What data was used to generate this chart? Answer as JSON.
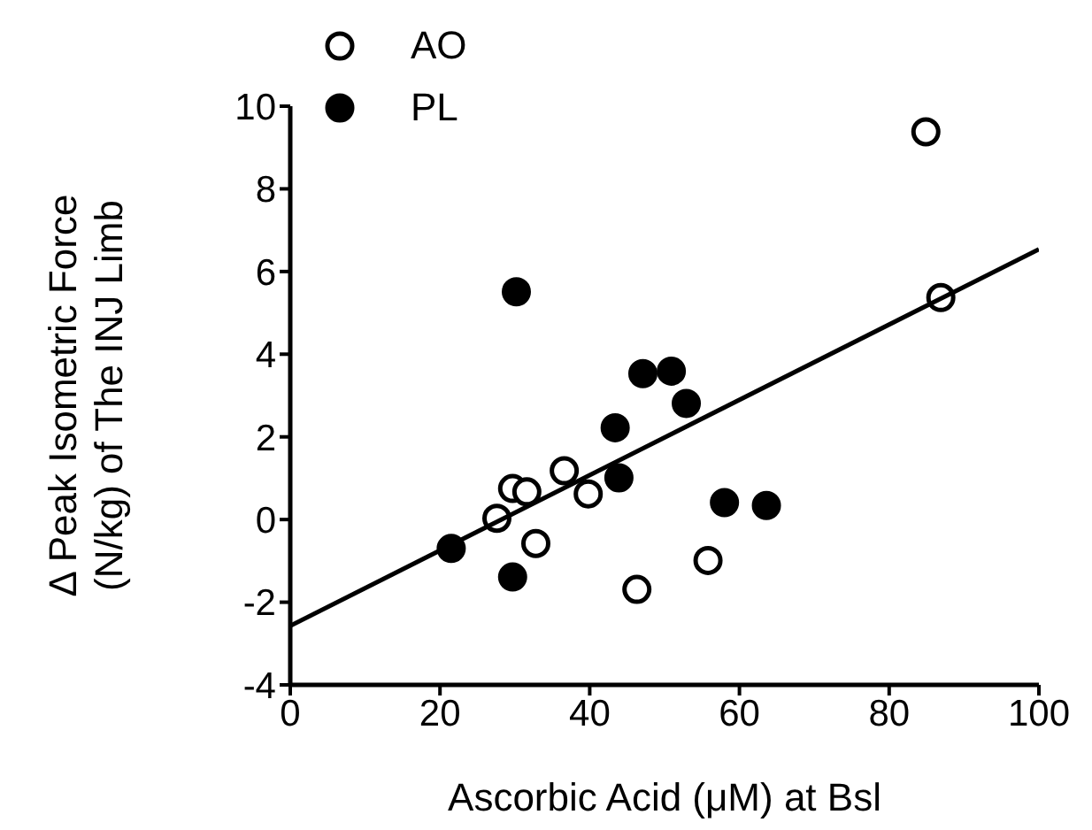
{
  "chart_data": {
    "type": "scatter",
    "xlabel": "Ascorbic Acid (μM) at Bsl",
    "ylabel": "Δ Peak Isometric Force\n(N/kg) of The INJ Limb",
    "xlim": [
      0,
      100
    ],
    "ylim": [
      -4,
      10
    ],
    "xticks": [
      0,
      20,
      40,
      60,
      80,
      100
    ],
    "yticks": [
      -4,
      -2,
      0,
      2,
      4,
      6,
      8,
      10
    ],
    "grid": false,
    "legend": "top left",
    "marker": "circle",
    "series": [
      {
        "name": "AO",
        "color": "#ffffff",
        "x": [
          84.9,
          86.9,
          27.6,
          29.7,
          31.6,
          36.6,
          39.8,
          32.8,
          46.3,
          55.8
        ],
        "values": [
          9.38,
          5.37,
          0.03,
          0.75,
          0.67,
          1.18,
          0.62,
          -0.58,
          -1.69,
          -0.99
        ]
      },
      {
        "name": "PL",
        "color": "#000000",
        "x": [
          30.2,
          21.5,
          29.7,
          43.4,
          43.9,
          47.1,
          50.9,
          52.9,
          58.0,
          63.6
        ],
        "values": [
          5.51,
          -0.7,
          -1.39,
          2.22,
          1.01,
          3.53,
          3.59,
          2.81,
          0.41,
          0.34
        ]
      },
      {
        "type": "line",
        "color": "#000000",
        "marker": "none",
        "line_style": "solid",
        "x": [
          0,
          100
        ],
        "values": [
          -2.57,
          6.54
        ]
      }
    ]
  }
}
